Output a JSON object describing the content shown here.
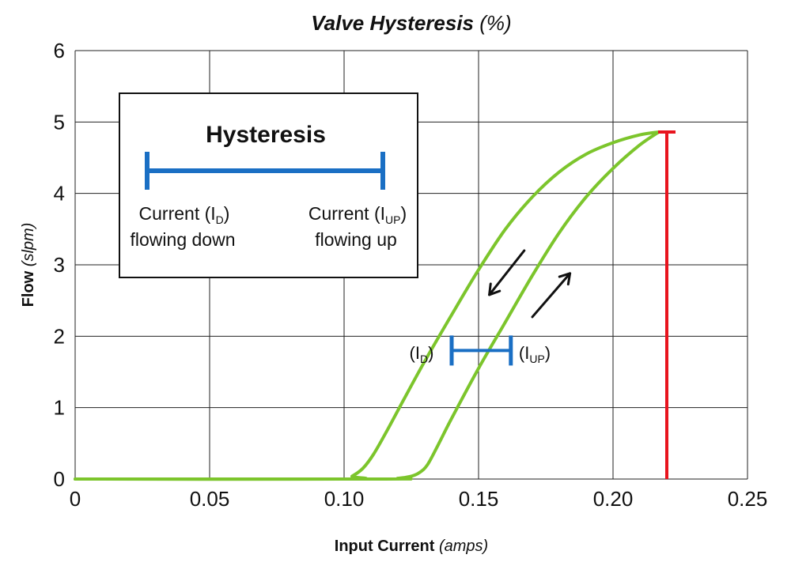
{
  "chart_data": {
    "type": "line",
    "title": "Valve Hysteresis",
    "title_unit": "(%)",
    "xlabel": "Input Current",
    "xlabel_unit": "(amps)",
    "ylabel": "Flow",
    "ylabel_unit": "(slpm)",
    "xlim": [
      0,
      0.25
    ],
    "ylim": [
      0,
      6
    ],
    "x_ticks": [
      0,
      0.05,
      0.1,
      0.15,
      0.2,
      0.25
    ],
    "x_tick_labels": [
      "0",
      "0.05",
      "0.10",
      "0.15",
      "0.20",
      "0.25"
    ],
    "y_ticks": [
      0,
      1,
      2,
      3,
      4,
      5,
      6
    ],
    "y_tick_labels": [
      "0",
      "1",
      "2",
      "3",
      "4",
      "5",
      "6"
    ],
    "grid": true,
    "line_color": "#7cc52c",
    "series": [
      {
        "x": [
          0,
          0.1,
          0.103,
          0.107,
          0.111,
          0.116,
          0.122,
          0.13,
          0.14,
          0.15,
          0.16,
          0.17,
          0.18,
          0.19,
          0.2,
          0.21,
          0.217
        ],
        "y": [
          0,
          0,
          0.04,
          0.15,
          0.35,
          0.68,
          1.1,
          1.65,
          2.3,
          2.93,
          3.5,
          3.95,
          4.3,
          4.55,
          4.71,
          4.82,
          4.86
        ]
      },
      {
        "x": [
          0,
          0.115,
          0.12,
          0.125,
          0.128,
          0.131,
          0.135,
          0.14,
          0.15,
          0.16,
          0.17,
          0.18,
          0.19,
          0.2,
          0.21,
          0.217
        ],
        "y": [
          0,
          0,
          0.01,
          0.04,
          0.09,
          0.2,
          0.48,
          0.85,
          1.55,
          2.2,
          2.85,
          3.45,
          3.95,
          4.35,
          4.68,
          4.86
        ]
      }
    ],
    "max_marker": {
      "x": 0.22,
      "y_top": 4.86,
      "color": "#e8141e"
    },
    "hysteresis_marker": {
      "x_down": 0.14,
      "x_up": 0.162,
      "y": 1.8,
      "color": "#1a6fc4",
      "label_down": "(I",
      "label_down_sub": "D",
      "label_down_close": ")",
      "label_up": "(I",
      "label_up_sub": "UP",
      "label_up_close": ")"
    },
    "arrows": [
      {
        "from": [
          0.167,
          3.2
        ],
        "to": [
          0.154,
          2.58
        ],
        "direction": "down"
      },
      {
        "from": [
          0.17,
          2.27
        ],
        "to": [
          0.184,
          2.88
        ],
        "direction": "up"
      }
    ],
    "legend": {
      "placement": "top-left",
      "title": "Hysteresis",
      "left_line1": "Current (I",
      "left_sub": "D",
      "left_close": ")",
      "left_line2": "flowing down",
      "right_line1": "Current (I",
      "right_sub": "UP",
      "right_close": ")",
      "right_line2": "flowing up"
    }
  }
}
